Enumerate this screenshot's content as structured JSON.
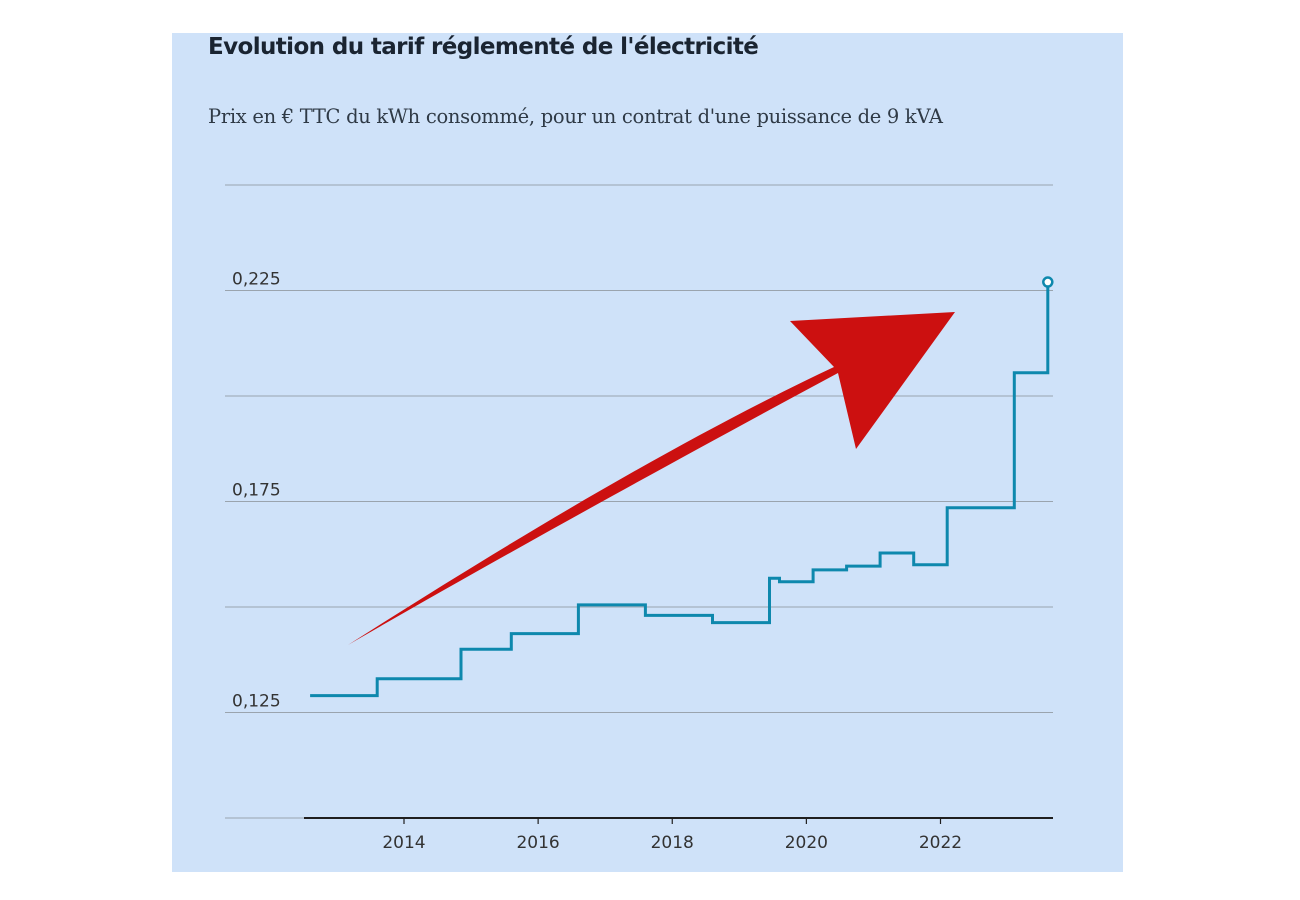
{
  "chart_data": {
    "type": "line",
    "step": true,
    "title": "Evolution du tarif réglementé de l'électricité",
    "subtitle": "Prix en € TTC du kWh consommé, pour un contrat d'une puissance de 9 kVA",
    "xlabel": "",
    "ylabel": "",
    "xlim": [
      2012.4,
      2023.7
    ],
    "ylim": [
      0.1,
      0.25
    ],
    "y_ticks": [
      {
        "value": 0.1,
        "label": ""
      },
      {
        "value": 0.125,
        "label": "0,125"
      },
      {
        "value": 0.15,
        "label": ""
      },
      {
        "value": 0.175,
        "label": "0,175"
      },
      {
        "value": 0.2,
        "label": ""
      },
      {
        "value": 0.225,
        "label": "0,225"
      },
      {
        "value": 0.25,
        "label": ""
      }
    ],
    "x_ticks": [
      {
        "value": 2014,
        "label": "2014"
      },
      {
        "value": 2016,
        "label": "2016"
      },
      {
        "value": 2018,
        "label": "2018"
      },
      {
        "value": 2020,
        "label": "2020"
      },
      {
        "value": 2022,
        "label": "2022"
      }
    ],
    "grid": true,
    "line_color": "#0e88ad",
    "series": [
      {
        "name": "",
        "points": [
          [
            2012.6,
            0.129
          ],
          [
            2013.6,
            0.129
          ],
          [
            2013.6,
            0.133
          ],
          [
            2014.85,
            0.133
          ],
          [
            2014.85,
            0.14
          ],
          [
            2015.6,
            0.14
          ],
          [
            2015.6,
            0.1437
          ],
          [
            2016.6,
            0.1437
          ],
          [
            2016.6,
            0.1505
          ],
          [
            2017.6,
            0.1505
          ],
          [
            2017.6,
            0.148
          ],
          [
            2018.6,
            0.148
          ],
          [
            2018.6,
            0.1463
          ],
          [
            2019.45,
            0.1463
          ],
          [
            2019.45,
            0.1568
          ],
          [
            2019.6,
            0.1568
          ],
          [
            2019.6,
            0.156
          ],
          [
            2020.1,
            0.156
          ],
          [
            2020.1,
            0.1588
          ],
          [
            2020.6,
            0.1588
          ],
          [
            2020.6,
            0.1597
          ],
          [
            2021.1,
            0.1597
          ],
          [
            2021.1,
            0.1628
          ],
          [
            2021.6,
            0.1628
          ],
          [
            2021.6,
            0.16
          ],
          [
            2022.1,
            0.16
          ],
          [
            2022.1,
            0.1735
          ],
          [
            2023.1,
            0.1735
          ],
          [
            2023.1,
            0.2055
          ],
          [
            2023.6,
            0.2055
          ],
          [
            2023.6,
            0.227
          ]
        ],
        "end_marker": true
      }
    ],
    "annotation": {
      "type": "arrow",
      "color": "#cc1010",
      "direction": "up-right"
    }
  }
}
